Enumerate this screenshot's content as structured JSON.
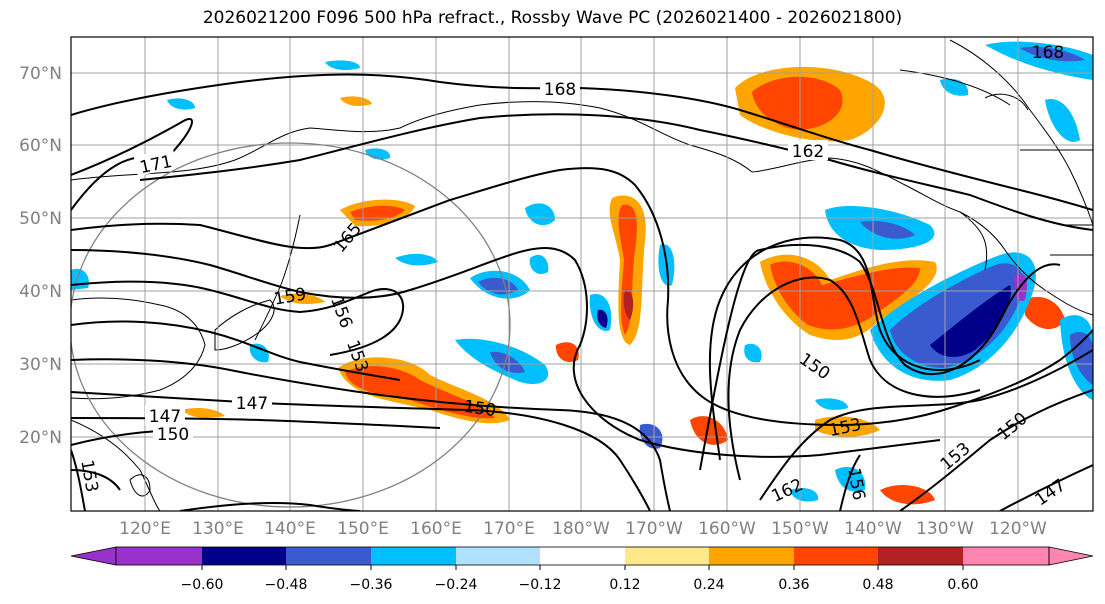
{
  "title": "2026021200 F096 500 hPa refract., Rossby Wave PC (2026021400 - 2026021800)",
  "lat_labels": [
    "70°N",
    "60°N",
    "50°N",
    "40°N",
    "30°N",
    "20°N"
  ],
  "lon_labels": [
    "120°E",
    "130°E",
    "140°E",
    "150°E",
    "160°E",
    "170°E",
    "180°W",
    "170°W",
    "160°W",
    "150°W",
    "140°W",
    "130°W",
    "120°W"
  ],
  "contour_labels": [
    "168",
    "171",
    "162",
    "165",
    "159",
    "156",
    "153",
    "147",
    "147",
    "150",
    "150",
    "150",
    "153",
    "153",
    "150",
    "162",
    "156",
    "147",
    "153",
    "168"
  ],
  "colorbar": {
    "colors": [
      "#9932cc",
      "#00008b",
      "#3a5bd0",
      "#00bfff",
      "#b0e2ff",
      "#ffffff",
      "#ffe88a",
      "#ffa500",
      "#ff4500",
      "#b22222",
      "#ff85b0"
    ],
    "tick_labels": [
      "−0.60",
      "−0.48",
      "−0.36",
      "−0.24",
      "−0.12",
      "0.12",
      "0.24",
      "0.36",
      "0.48",
      "0.60"
    ]
  },
  "colors": {
    "grid": "#a0a0a0",
    "coast": "#000000",
    "contour": "#000000",
    "circle": "#808080"
  }
}
